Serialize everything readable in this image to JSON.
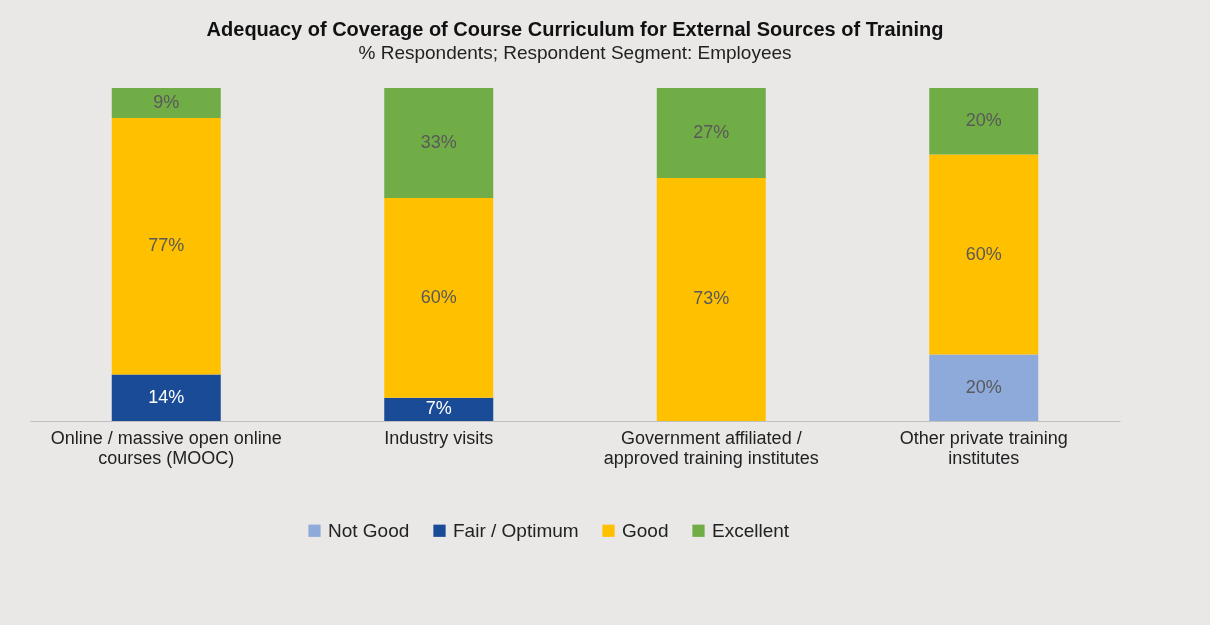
{
  "chart_data": {
    "type": "bar",
    "title": "Adequacy of Coverage of Course Curriculum for External Sources of Training",
    "subtitle": "% Respondents; Respondent Segment: Employees",
    "categories": [
      "Online / massive open online courses (MOOC)",
      "Industry visits",
      "Government affiliated / approved training institutes",
      "Other private training institutes"
    ],
    "stacked": true,
    "legend": "bottom",
    "tick_labels": "x",
    "series": [
      {
        "name": "Not Good",
        "color": "#8eaadb",
        "values": [
          null,
          null,
          null,
          20
        ],
        "value_labels": [
          null,
          null,
          null,
          "20%"
        ]
      },
      {
        "name": "Fair / Optimum",
        "color": "#1a4b97",
        "values": [
          14,
          7,
          null,
          null
        ],
        "value_labels": [
          "14%",
          "7%",
          null,
          null
        ]
      },
      {
        "name": "Good",
        "color": "#ffc000",
        "values": [
          77,
          60,
          73,
          60
        ],
        "value_labels": [
          "77%",
          "60%",
          "73%",
          "60%"
        ]
      },
      {
        "name": "Excellent",
        "color": "#70ad47",
        "values": [
          9,
          33,
          27,
          20
        ],
        "value_labels": [
          "9%",
          "33%",
          "27%",
          "20%"
        ]
      }
    ]
  }
}
